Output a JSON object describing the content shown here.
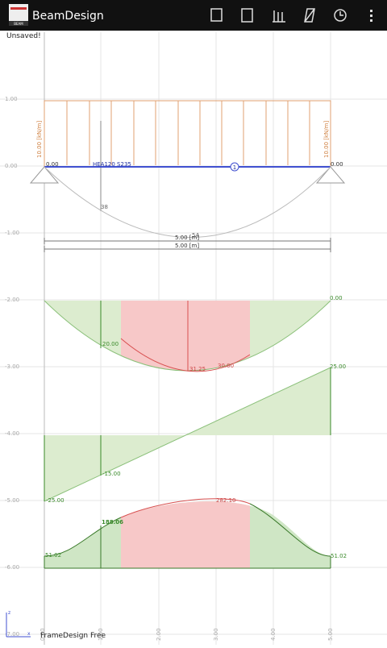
{
  "app_bar": {
    "title": "BeamDesign",
    "icon_caption": "BEAM"
  },
  "status": "Unsaved!",
  "y_axis_labels": [
    "1.00",
    "0.00",
    "-1.00",
    "-2.00",
    "-3.00",
    "-4.00",
    "-5.00",
    "-6.00",
    "-7.00"
  ],
  "x_axis_labels": [
    "0.00",
    "1.00",
    "2.00",
    "3.00",
    "4.00",
    "5.00"
  ],
  "beam": {
    "load_left": "10.00 [kN/m]",
    "load_right": "10.00 [kN/m]",
    "profile": "HEA120 S235",
    "node_left": "0.00",
    "node_right": "0.00",
    "member": "1",
    "deflection_labels": [
      "38",
      "54"
    ],
    "dimensions": [
      "5.00 [m]",
      "5.00 [m]"
    ]
  },
  "diagrams": {
    "moment": [
      "20.00",
      "31.25",
      "30.00",
      "0.00"
    ],
    "shear": [
      "-25.00",
      "-15.00",
      "25.00"
    ],
    "utilization": [
      "51.02",
      "188.06",
      "282.10",
      "51.02"
    ]
  },
  "footer": {
    "brand": "FrameDesign Free",
    "axis_z": "z",
    "axis_x": "x"
  }
}
